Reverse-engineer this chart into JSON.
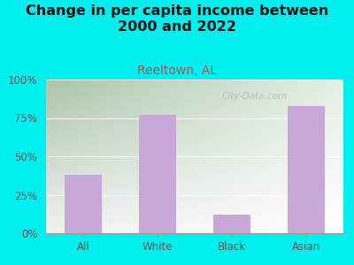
{
  "title": "Change in per capita income between\n2000 and 2022",
  "subtitle": "Reeltown, AL",
  "categories": [
    "All",
    "White",
    "Black",
    "Asian"
  ],
  "values": [
    38,
    77,
    12,
    83
  ],
  "bar_color": "#c8a8d8",
  "outer_bg": "#00efef",
  "plot_bg_corners": [
    "#d4edcc",
    "#f0fae8",
    "#ffffff",
    "#e8f8e0"
  ],
  "yticks": [
    0,
    25,
    50,
    75,
    100
  ],
  "ytick_labels": [
    "0%",
    "25%",
    "50%",
    "75%",
    "100%"
  ],
  "title_fontsize": 11.5,
  "subtitle_fontsize": 10,
  "subtitle_color": "#b05050",
  "title_color": "#111111",
  "tick_color": "#555555",
  "watermark": "City-Data.com",
  "ylim": [
    0,
    100
  ]
}
